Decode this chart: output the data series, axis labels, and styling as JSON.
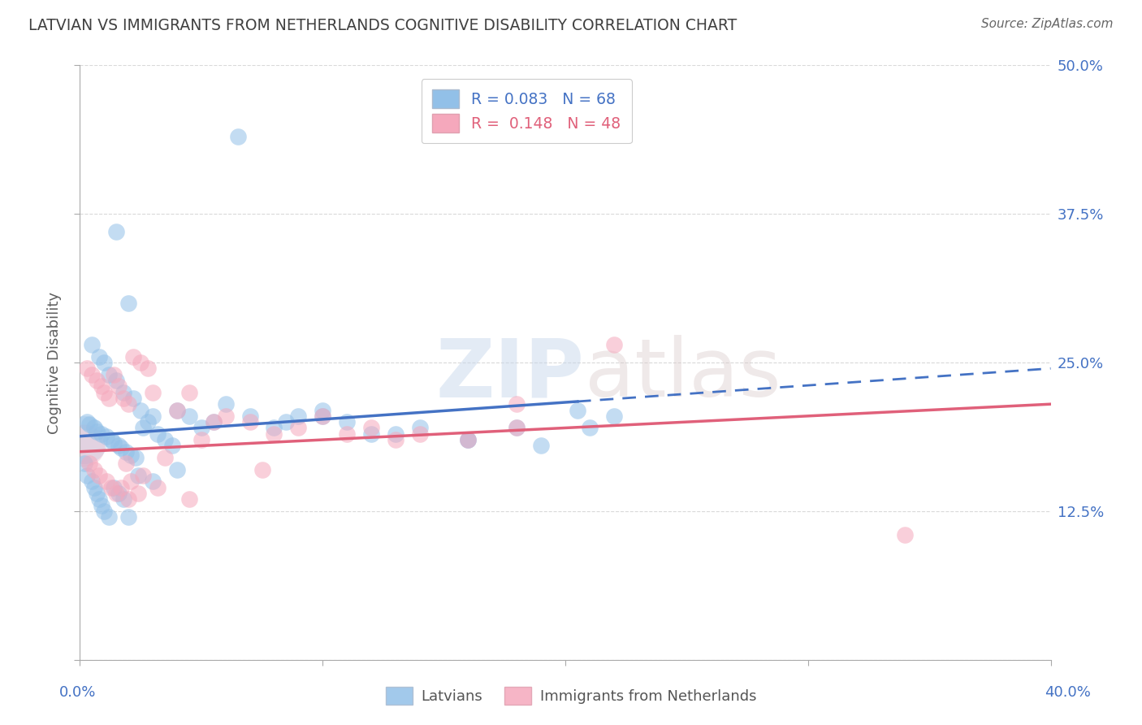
{
  "title": "LATVIAN VS IMMIGRANTS FROM NETHERLANDS COGNITIVE DISABILITY CORRELATION CHART",
  "source": "Source: ZipAtlas.com",
  "ylabel": "Cognitive Disability",
  "xlim": [
    0.0,
    40.0
  ],
  "ylim": [
    0.0,
    50.0
  ],
  "ytick_vals": [
    0.0,
    12.5,
    25.0,
    37.5,
    50.0
  ],
  "ytick_labels": [
    "",
    "12.5%",
    "25.0%",
    "37.5%",
    "50.0%"
  ],
  "latvian_color": "#92c0e8",
  "immigrant_color": "#f5a8bc",
  "latvian_line_color": "#4472c4",
  "immigrant_line_color": "#e0607a",
  "latvian_R": 0.083,
  "latvian_N": 68,
  "immigrant_R": 0.148,
  "immigrant_N": 48,
  "background_color": "#ffffff",
  "grid_color": "#d0d0d0",
  "title_color": "#404040",
  "right_tick_color": "#4472c4",
  "ylabel_color": "#606060",
  "lat_trend_x0": 0,
  "lat_trend_y0": 18.8,
  "lat_trend_x1": 40,
  "lat_trend_y1": 24.5,
  "lat_solid_end": 20.5,
  "imm_trend_x0": 0,
  "imm_trend_y0": 17.5,
  "imm_trend_x1": 40,
  "imm_trend_y1": 21.5,
  "lat_scatter_x": [
    6.5,
    1.5,
    2.0,
    0.5,
    0.8,
    1.0,
    1.2,
    1.5,
    1.8,
    2.2,
    2.5,
    3.0,
    0.3,
    0.4,
    0.6,
    0.7,
    0.9,
    1.1,
    1.3,
    1.4,
    1.6,
    1.7,
    1.9,
    2.1,
    2.3,
    2.6,
    2.8,
    3.2,
    3.5,
    3.8,
    4.0,
    4.5,
    5.0,
    5.5,
    6.0,
    7.0,
    8.0,
    9.0,
    10.0,
    11.0,
    12.0,
    14.0,
    16.0,
    18.0,
    20.5,
    22.0,
    0.2,
    0.3,
    0.5,
    0.6,
    0.7,
    0.8,
    0.9,
    1.0,
    1.2,
    1.4,
    1.6,
    1.8,
    2.0,
    2.4,
    3.0,
    4.0,
    8.5,
    10.0,
    13.0,
    16.0,
    19.0,
    21.0
  ],
  "lat_scatter_y": [
    44.0,
    36.0,
    30.0,
    26.5,
    25.5,
    25.0,
    24.0,
    23.5,
    22.5,
    22.0,
    21.0,
    20.5,
    20.0,
    19.8,
    19.5,
    19.2,
    19.0,
    18.8,
    18.5,
    18.2,
    18.0,
    17.8,
    17.5,
    17.2,
    17.0,
    19.5,
    20.0,
    19.0,
    18.5,
    18.0,
    21.0,
    20.5,
    19.5,
    20.0,
    21.5,
    20.5,
    19.5,
    20.5,
    21.0,
    20.0,
    19.0,
    19.5,
    18.5,
    19.5,
    21.0,
    20.5,
    16.5,
    15.5,
    15.0,
    14.5,
    14.0,
    13.5,
    13.0,
    12.5,
    12.0,
    14.5,
    14.0,
    13.5,
    12.0,
    15.5,
    15.0,
    16.0,
    20.0,
    20.5,
    19.0,
    18.5,
    18.0,
    19.5
  ],
  "imm_scatter_x": [
    0.3,
    0.5,
    0.7,
    0.9,
    1.0,
    1.2,
    1.4,
    1.6,
    1.8,
    2.0,
    2.2,
    2.5,
    2.8,
    3.0,
    3.5,
    4.0,
    5.0,
    6.0,
    8.0,
    10.0,
    12.0,
    14.0,
    16.0,
    18.0,
    0.4,
    0.6,
    0.8,
    1.1,
    1.3,
    1.5,
    1.7,
    1.9,
    2.1,
    2.4,
    2.6,
    3.2,
    4.5,
    7.0,
    9.0,
    11.0,
    13.0,
    4.5,
    18.0,
    7.5,
    34.0,
    22.0,
    5.5,
    2.0
  ],
  "imm_scatter_y": [
    24.5,
    24.0,
    23.5,
    23.0,
    22.5,
    22.0,
    24.0,
    23.0,
    22.0,
    21.5,
    25.5,
    25.0,
    24.5,
    22.5,
    17.0,
    21.0,
    18.5,
    20.5,
    19.0,
    20.5,
    19.5,
    19.0,
    18.5,
    19.5,
    16.5,
    16.0,
    15.5,
    15.0,
    14.5,
    14.0,
    14.5,
    16.5,
    15.0,
    14.0,
    15.5,
    14.5,
    13.5,
    20.0,
    19.5,
    19.0,
    18.5,
    22.5,
    21.5,
    16.0,
    10.5,
    26.5,
    20.0,
    13.5
  ]
}
